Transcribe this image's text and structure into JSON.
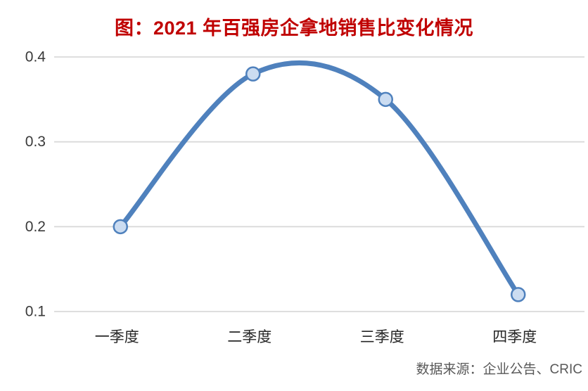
{
  "chart_data": {
    "type": "line",
    "title": "图：2021 年百强房企拿地销售比变化情况",
    "categories": [
      "一季度",
      "二季度",
      "三季度",
      "四季度"
    ],
    "values": [
      0.2,
      0.38,
      0.35,
      0.12
    ],
    "yticks": [
      0.4,
      0.3,
      0.2,
      0.1
    ],
    "ylim": [
      0.1,
      0.4
    ],
    "grid": "horizontal-light-gray",
    "line_style": "smooth-spline-with-circle-markers",
    "legend": "none",
    "source": "数据来源：企业公告、CRIC"
  },
  "colors": {
    "title_text": "#C00000",
    "line": "#4F81BD",
    "marker_fill": "#CBDCF1",
    "marker_stroke": "#4F81BD",
    "gridline": "#D9D9D9",
    "y_axis_label": "#3A3A3A",
    "x_axis_label": "#262626",
    "source_text": "#595959",
    "background": "#FFFFFF"
  }
}
